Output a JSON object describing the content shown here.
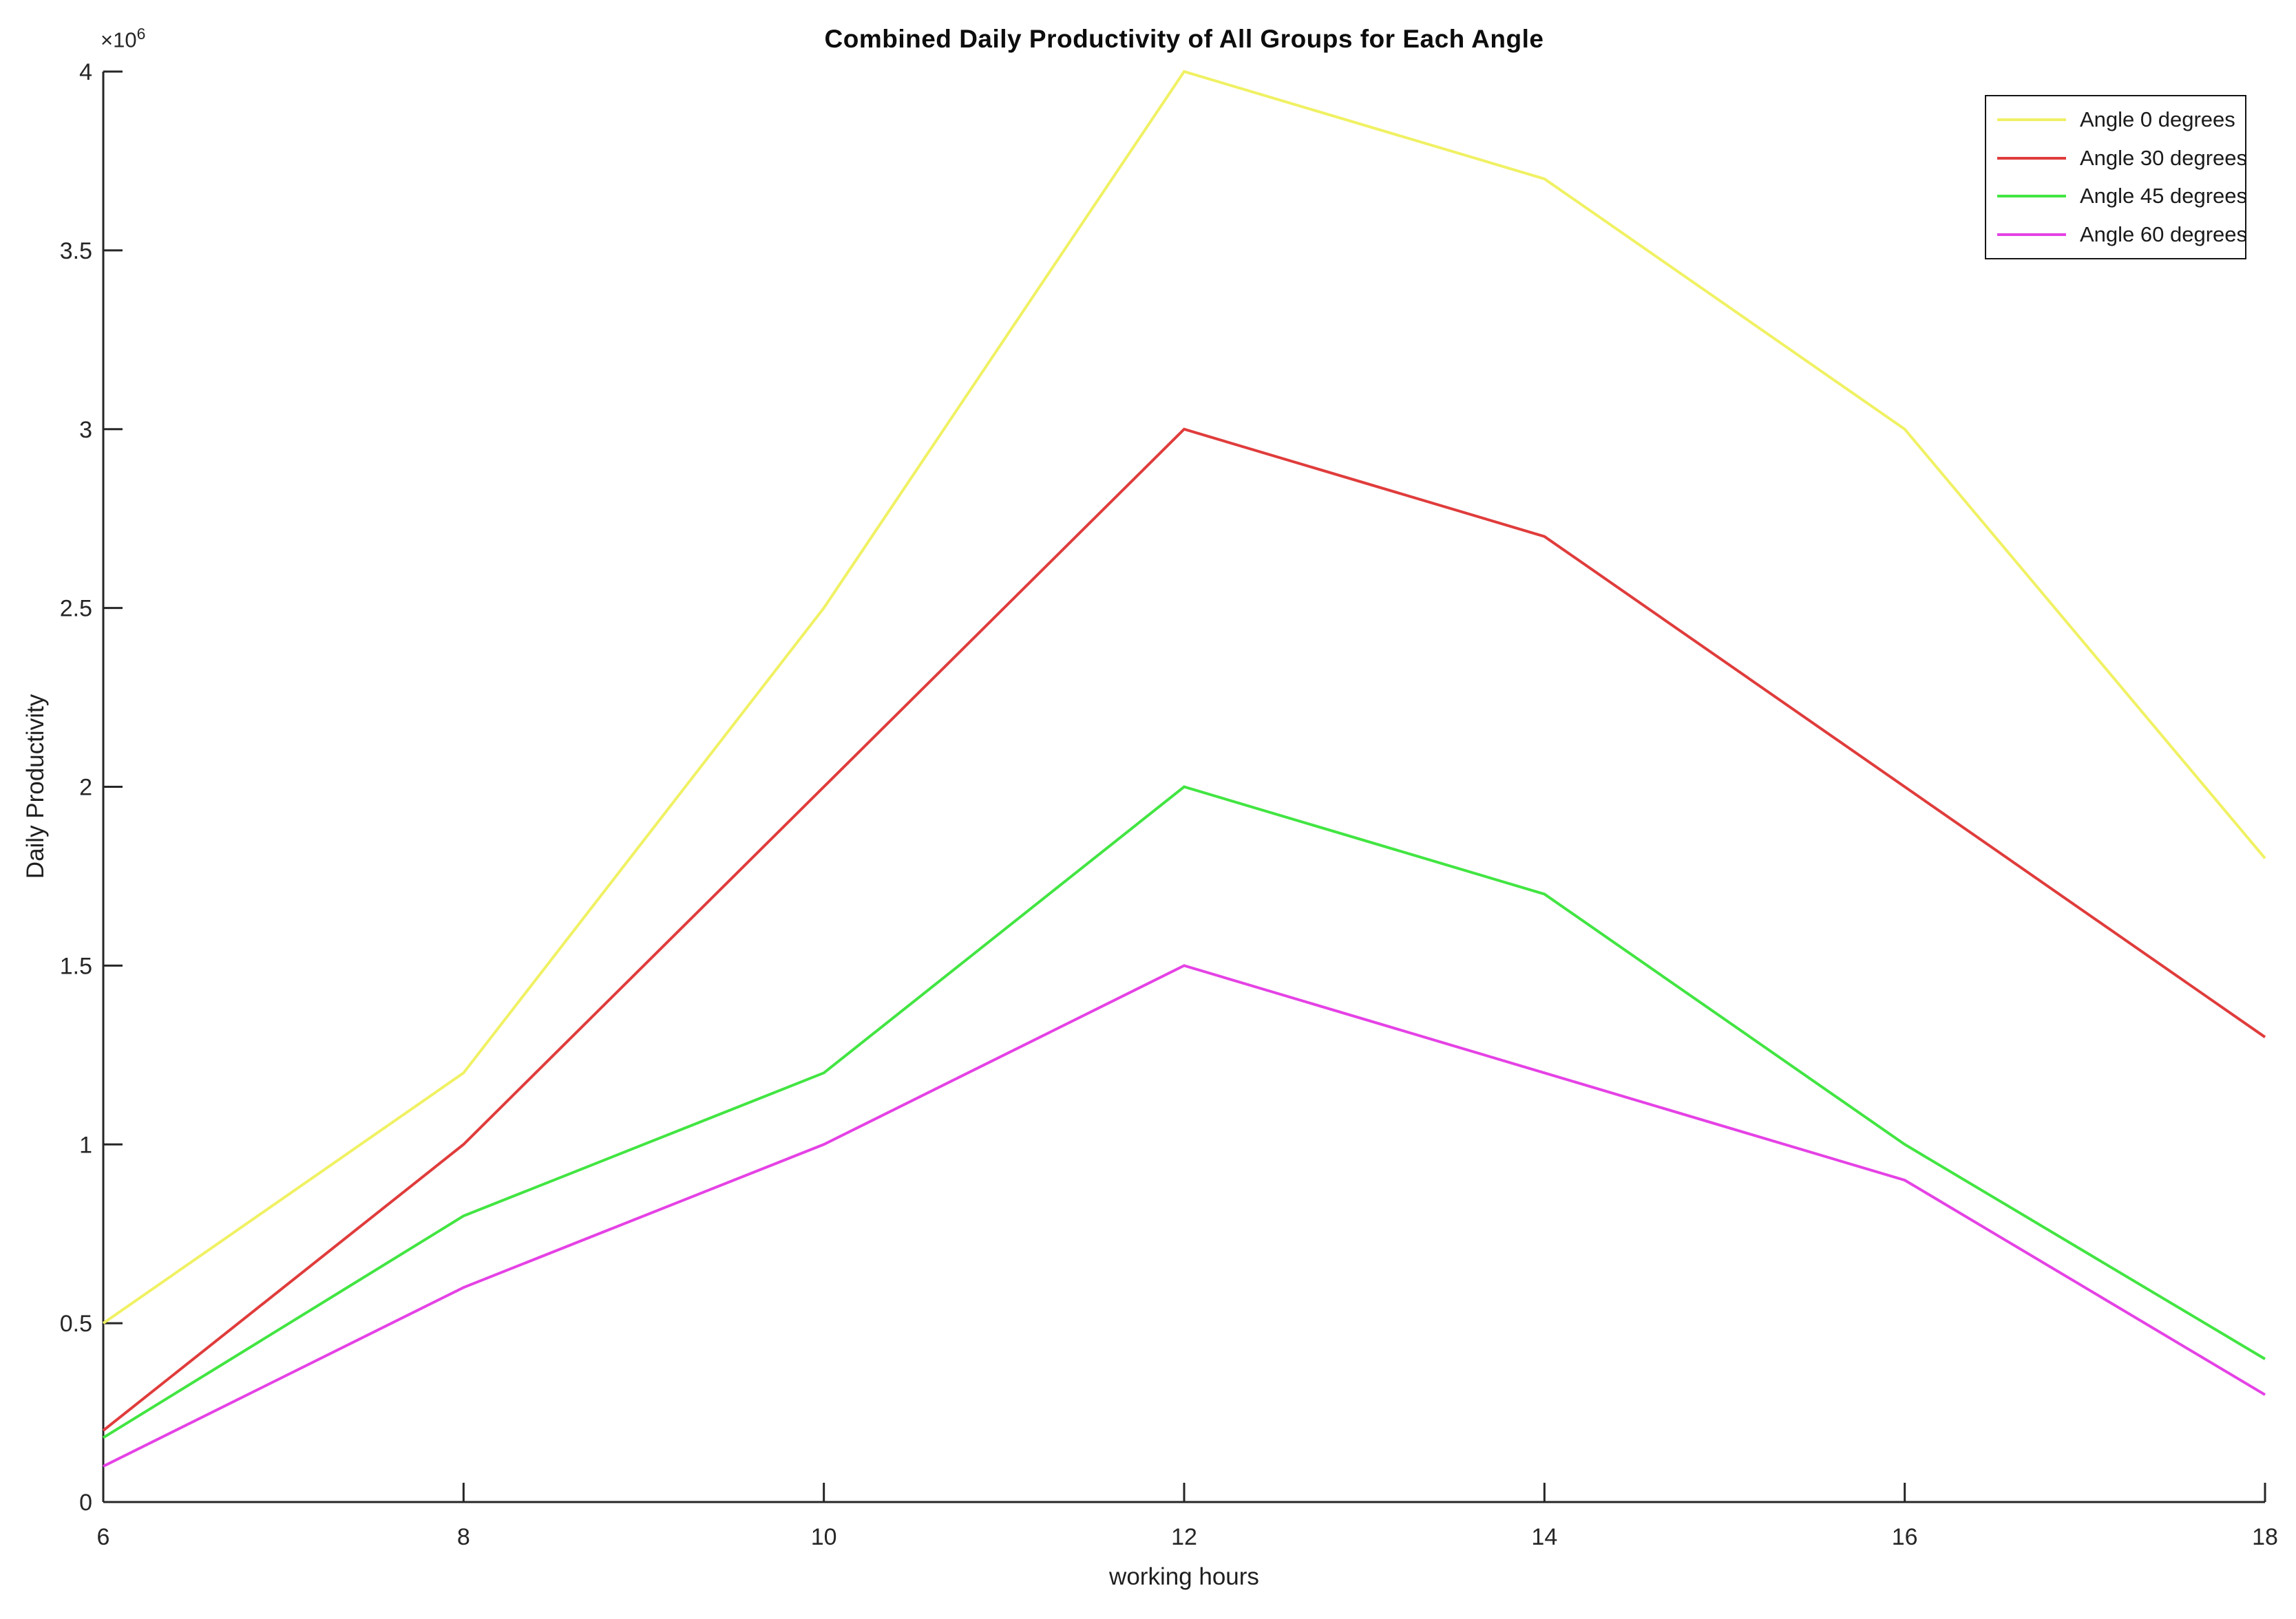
{
  "chart_data": {
    "type": "line",
    "title": "Combined Daily Productivity of All Groups for Each Angle",
    "xlabel": "working hours",
    "ylabel": "Daily Productivity",
    "y_multiplier": {
      "base": "×10",
      "exponent": "6"
    },
    "x": [
      6,
      8,
      10,
      12,
      14,
      16,
      18
    ],
    "x_ticks": [
      "6",
      "8",
      "10",
      "12",
      "14",
      "16",
      "18"
    ],
    "y_tick_values": [
      0,
      0.5,
      1,
      1.5,
      2,
      2.5,
      3,
      3.5,
      4
    ],
    "y_ticks": [
      "0",
      "0.5",
      "1",
      "1.5",
      "2",
      "2.5",
      "3",
      "3.5",
      "4"
    ],
    "xlim": [
      6,
      18
    ],
    "ylim": [
      0,
      4000000
    ],
    "grid": false,
    "legend_position": "top-right",
    "axis_color": "#262626",
    "series": [
      {
        "name": "Angle 0 degrees",
        "color": "#f0f163",
        "values": [
          500000,
          1200000,
          2500000,
          4000000,
          3700000,
          3000000,
          1800000
        ]
      },
      {
        "name": "Angle 30 degrees",
        "color": "#e03c3c",
        "values": [
          200000,
          1000000,
          2000000,
          3000000,
          2700000,
          2000000,
          1300000
        ]
      },
      {
        "name": "Angle 45 degrees",
        "color": "#42e542",
        "values": [
          180000,
          800000,
          1200000,
          2000000,
          1700000,
          1000000,
          400000
        ]
      },
      {
        "name": "Angle 60 degrees",
        "color": "#e542e5",
        "values": [
          100000,
          600000,
          1000000,
          1500000,
          1200000,
          900000,
          300000
        ]
      }
    ]
  }
}
